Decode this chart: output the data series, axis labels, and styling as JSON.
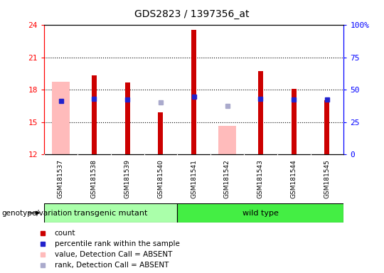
{
  "title": "GDS2823 / 1397356_at",
  "samples": [
    "GSM181537",
    "GSM181538",
    "GSM181539",
    "GSM181540",
    "GSM181541",
    "GSM181542",
    "GSM181543",
    "GSM181544",
    "GSM181545"
  ],
  "count_values": [
    null,
    19.3,
    18.65,
    15.9,
    23.55,
    null,
    19.75,
    18.05,
    17.05
  ],
  "rank_values": [
    16.95,
    17.15,
    17.1,
    null,
    17.35,
    null,
    17.15,
    17.1,
    17.1
  ],
  "absent_value_values": [
    18.75,
    null,
    null,
    null,
    null,
    14.65,
    null,
    null,
    null
  ],
  "absent_rank_values": [
    null,
    null,
    null,
    16.85,
    null,
    16.5,
    null,
    null,
    null
  ],
  "ylim_left": [
    12,
    24
  ],
  "yticks_left": [
    12,
    15,
    18,
    21,
    24
  ],
  "ylim_right": [
    0,
    100
  ],
  "yticks_right": [
    0,
    25,
    50,
    75,
    100
  ],
  "yticklabels_right": [
    "0",
    "25",
    "50",
    "75",
    "100%"
  ],
  "base": 12,
  "group1_label": "transgenic mutant",
  "group2_label": "wild type",
  "group1_indices": [
    0,
    1,
    2,
    3
  ],
  "group2_indices": [
    4,
    5,
    6,
    7,
    8
  ],
  "group1_color": "#aaffaa",
  "group2_color": "#44ee44",
  "bar_color_present": "#cc0000",
  "bar_color_absent_value": "#ffbbbb",
  "dot_color_present": "#2222cc",
  "dot_color_absent_rank": "#aaaacc",
  "genotype_label": "genotype/variation",
  "legend_items": [
    {
      "label": "count",
      "color": "#cc0000"
    },
    {
      "label": "percentile rank within the sample",
      "color": "#2222cc"
    },
    {
      "label": "value, Detection Call = ABSENT",
      "color": "#ffbbbb"
    },
    {
      "label": "rank, Detection Call = ABSENT",
      "color": "#aaaacc"
    }
  ],
  "fig_width": 5.4,
  "fig_height": 3.84,
  "dpi": 100
}
